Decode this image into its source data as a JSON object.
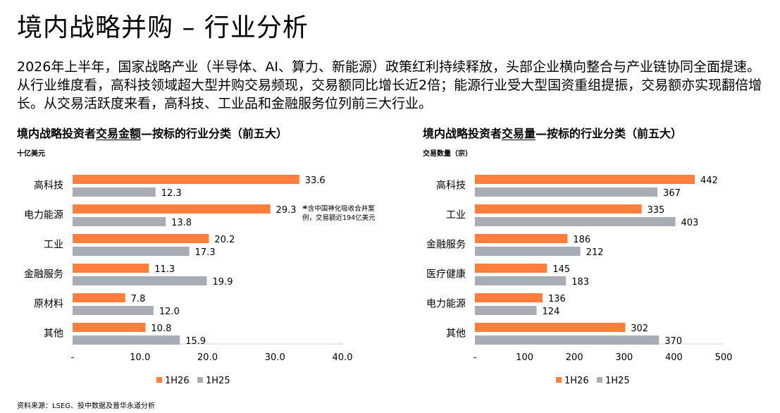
{
  "page": {
    "title": "境内战略并购 – 行业分析",
    "intro": [
      "2026年上半年，国家战略产业（半导体、AI、算力、新能源）政策红利持续释放，头部企业横向整合与产业链协同全面提速。",
      "从行业维度看，高科技领域超大型并购交易频现，交易额同比增长近2倍；能源行业受大型国资重组提振，交易额亦实现翻倍增长。从交易活跃度来看，高科技、工业品和金融服务位列前三大行业。"
    ],
    "source": "资料来源：LSEG、投中数据及普华永道分析"
  },
  "colors": {
    "h26": "#fd7e3d",
    "h25": "#a8acb5",
    "axis": "#cccccc",
    "text": "#000000"
  },
  "left_chart": {
    "title_prefix": "境内战略投资者",
    "title_emph": "交易金额",
    "title_suffix": "—按标的行业分类（前五大）",
    "unit": "十亿美元",
    "note": "* 含中国神化吸收合并案例，交易额近194亿美元"
  },
  "right_chart": {
    "title_prefix": "境内战略投资者",
    "title_emph": "交易量",
    "title_suffix": "—按标的行业分类（前五大）",
    "unit": "交易数量（宗）"
  },
  "chart_data": [
    {
      "type": "bar",
      "orientation": "horizontal",
      "categories": [
        "高科技",
        "电力能源",
        "工业",
        "金融服务",
        "原材料",
        "其他"
      ],
      "series": [
        {
          "name": "1H26",
          "values": [
            33.6,
            29.3,
            20.2,
            11.3,
            7.8,
            10.8
          ],
          "labels": [
            "33.6",
            "29.3",
            "20.2",
            "11.3",
            "7.8",
            "10.8"
          ]
        },
        {
          "name": "1H25",
          "values": [
            12.3,
            13.8,
            17.3,
            19.9,
            12.0,
            15.9
          ],
          "labels": [
            "12.3",
            "13.8",
            "17.3",
            "19.9",
            "12.0",
            "15.9"
          ]
        }
      ],
      "xlim": [
        0,
        40
      ],
      "xticks": [
        0,
        10,
        20,
        30,
        40
      ],
      "xtick_labels": [
        "-",
        "10.0",
        "20.0",
        "30.0",
        "40.0"
      ],
      "data_note_mark": {
        "category": "电力能源",
        "text": "*"
      },
      "legend": "bottom",
      "grid": false
    },
    {
      "type": "bar",
      "orientation": "horizontal",
      "categories": [
        "高科技",
        "工业",
        "金融服务",
        "医疗健康",
        "电力能源",
        "其他"
      ],
      "series": [
        {
          "name": "1H26",
          "values": [
            442,
            335,
            186,
            145,
            136,
            302
          ],
          "labels": [
            "442",
            "335",
            "186",
            "145",
            "136",
            "302"
          ]
        },
        {
          "name": "1H25",
          "values": [
            367,
            403,
            212,
            183,
            124,
            370
          ],
          "labels": [
            "367",
            "403",
            "212",
            "183",
            "124",
            "370"
          ]
        }
      ],
      "xlim": [
        0,
        500
      ],
      "xticks": [
        0,
        100,
        200,
        300,
        400,
        500
      ],
      "xtick_labels": [
        "-",
        "100",
        "200",
        "300",
        "400",
        "500"
      ],
      "legend": "bottom",
      "grid": false
    }
  ]
}
